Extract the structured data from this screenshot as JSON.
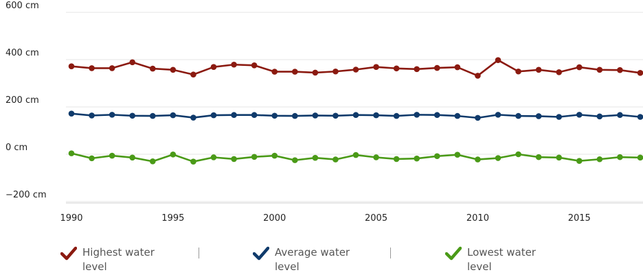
{
  "chart_data": {
    "type": "line",
    "x": [
      1990,
      1991,
      1992,
      1993,
      1994,
      1995,
      1996,
      1997,
      1998,
      1999,
      2000,
      2001,
      2002,
      2003,
      2004,
      2005,
      2006,
      2007,
      2008,
      2009,
      2010,
      2011,
      2012,
      2013,
      2014,
      2015,
      2016,
      2017,
      2018
    ],
    "xlim": [
      1990,
      2018
    ],
    "ylim": [
      -200,
      600
    ],
    "yticks": [
      {
        "value": 600,
        "label": "600 cm"
      },
      {
        "value": 400,
        "label": "400 cm"
      },
      {
        "value": 200,
        "label": "200 cm"
      },
      {
        "value": 0,
        "label": "0 cm"
      },
      {
        "value": -200,
        "label": "−200 cm"
      }
    ],
    "xticks": [
      {
        "value": 1990,
        "label": "1990"
      },
      {
        "value": 1995,
        "label": "1995"
      },
      {
        "value": 2000,
        "label": "2000"
      },
      {
        "value": 2005,
        "label": "2005"
      },
      {
        "value": 2010,
        "label": "2010"
      },
      {
        "value": 2015,
        "label": "2015"
      }
    ],
    "grid": true,
    "legend_position": "bottom",
    "series": [
      {
        "name": "Highest water level",
        "color": "#8b1a10",
        "values": [
          372,
          364,
          364,
          389,
          362,
          357,
          337,
          369,
          379,
          376,
          349,
          349,
          345,
          350,
          358,
          369,
          363,
          360,
          365,
          368,
          332,
          398,
          350,
          357,
          347,
          368,
          357,
          356,
          344
        ]
      },
      {
        "name": "Average water level",
        "color": "#0f3a6b",
        "values": [
          172,
          164,
          167,
          163,
          162,
          165,
          155,
          165,
          166,
          166,
          163,
          162,
          164,
          163,
          166,
          165,
          162,
          167,
          166,
          162,
          154,
          167,
          162,
          161,
          158,
          167,
          160,
          166,
          158
        ]
      },
      {
        "name": "Lowest water level",
        "color": "#4a9a17",
        "values": [
          4,
          -17,
          -6,
          -14,
          -30,
          -1,
          -31,
          -13,
          -20,
          -11,
          -6,
          -25,
          -15,
          -22,
          -3,
          -13,
          -20,
          -18,
          -8,
          -2,
          -22,
          -16,
          0,
          -12,
          -14,
          -28,
          -21,
          -12,
          -14
        ]
      }
    ]
  },
  "legend": {
    "items": [
      {
        "label": "Highest water level",
        "color": "#8b1a10"
      },
      {
        "label": "Average water level",
        "color": "#0f3a6b"
      },
      {
        "label": "Lowest water level",
        "color": "#4a9a17"
      }
    ],
    "separator": "|"
  }
}
